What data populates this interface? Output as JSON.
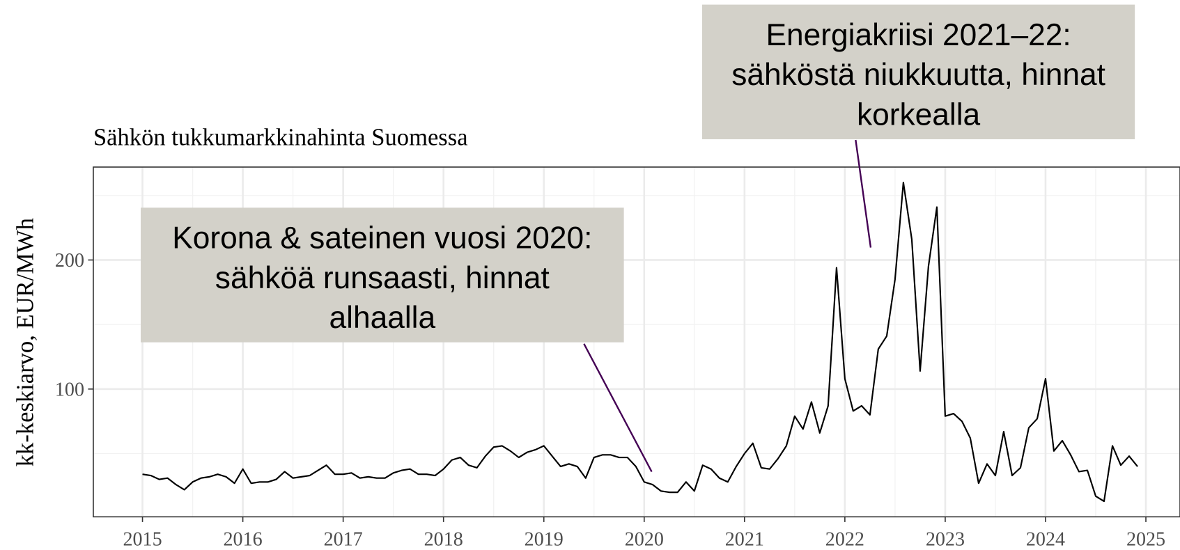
{
  "chart_data": {
    "type": "line",
    "title": "Sähkön tukkumarkkinahinta Suomessa",
    "y_label": "kk-keskiarvo, EUR/MWh",
    "xlim": [
      2014.51,
      2025.34
    ],
    "ylim": [
      1,
      272
    ],
    "xticks": [
      2015,
      2016,
      2017,
      2018,
      2019,
      2020,
      2021,
      2022,
      2023,
      2024,
      2025
    ],
    "yticks": [
      100,
      200
    ],
    "grid": true,
    "series": [
      {
        "color": "#000000",
        "x": [
          2015,
          2015.083,
          2015.167,
          2015.25,
          2015.333,
          2015.417,
          2015.5,
          2015.583,
          2015.667,
          2015.75,
          2015.833,
          2015.917,
          2016,
          2016.083,
          2016.167,
          2016.25,
          2016.333,
          2016.417,
          2016.5,
          2016.583,
          2016.667,
          2016.75,
          2016.833,
          2016.917,
          2017,
          2017.083,
          2017.167,
          2017.25,
          2017.333,
          2017.417,
          2017.5,
          2017.583,
          2017.667,
          2017.75,
          2017.833,
          2017.917,
          2018,
          2018.083,
          2018.167,
          2018.25,
          2018.333,
          2018.417,
          2018.5,
          2018.583,
          2018.667,
          2018.75,
          2018.833,
          2018.917,
          2019,
          2019.083,
          2019.167,
          2019.25,
          2019.333,
          2019.417,
          2019.5,
          2019.583,
          2019.667,
          2019.75,
          2019.833,
          2019.917,
          2020,
          2020.083,
          2020.167,
          2020.25,
          2020.333,
          2020.417,
          2020.5,
          2020.583,
          2020.667,
          2020.75,
          2020.833,
          2020.917,
          2021,
          2021.083,
          2021.167,
          2021.25,
          2021.333,
          2021.417,
          2021.5,
          2021.583,
          2021.667,
          2021.75,
          2021.833,
          2021.917,
          2022,
          2022.083,
          2022.167,
          2022.25,
          2022.333,
          2022.417,
          2022.5,
          2022.583,
          2022.667,
          2022.75,
          2022.833,
          2022.917,
          2023,
          2023.083,
          2023.167,
          2023.25,
          2023.333,
          2023.417,
          2023.5,
          2023.583,
          2023.667,
          2023.75,
          2023.833,
          2023.917,
          2024,
          2024.083,
          2024.167,
          2024.25,
          2024.333,
          2024.417,
          2024.5,
          2024.583,
          2024.667,
          2024.75,
          2024.833,
          2024.917
        ],
        "values": [
          34,
          33,
          30,
          31,
          26,
          22,
          28,
          31,
          32,
          34,
          32,
          27,
          38,
          27,
          28,
          28,
          30,
          36,
          31,
          32,
          33,
          37,
          41,
          34,
          34,
          35,
          31,
          32,
          31,
          31,
          35,
          37,
          38,
          34,
          34,
          33,
          38,
          45,
          47,
          41,
          39,
          48,
          55,
          56,
          52,
          47,
          51,
          53,
          56,
          48,
          40,
          42,
          40,
          31,
          47,
          49,
          49,
          47,
          47,
          40,
          28,
          26,
          21,
          20,
          20,
          28,
          21,
          41,
          38,
          31,
          28,
          40,
          50,
          58,
          39,
          38,
          46,
          56,
          79,
          69,
          90,
          66,
          87,
          194,
          108,
          83,
          87,
          80,
          131,
          141,
          185,
          260,
          216,
          114,
          195,
          241,
          79,
          81,
          75,
          62,
          27,
          42,
          33,
          67,
          33,
          39,
          70,
          77,
          108,
          52,
          60,
          49,
          36,
          37,
          17,
          13,
          56,
          41,
          48,
          40
        ]
      }
    ],
    "annotations": [
      {
        "lines": [
          "Korona & sateinen vuosi 2020:",
          "sähköä runsaasti, hinnat",
          "alhaalla"
        ]
      },
      {
        "lines": [
          "Energiakriisi 2021–22:",
          "sähköstä niukkuutta, hinnat",
          "korkealla"
        ]
      }
    ]
  }
}
